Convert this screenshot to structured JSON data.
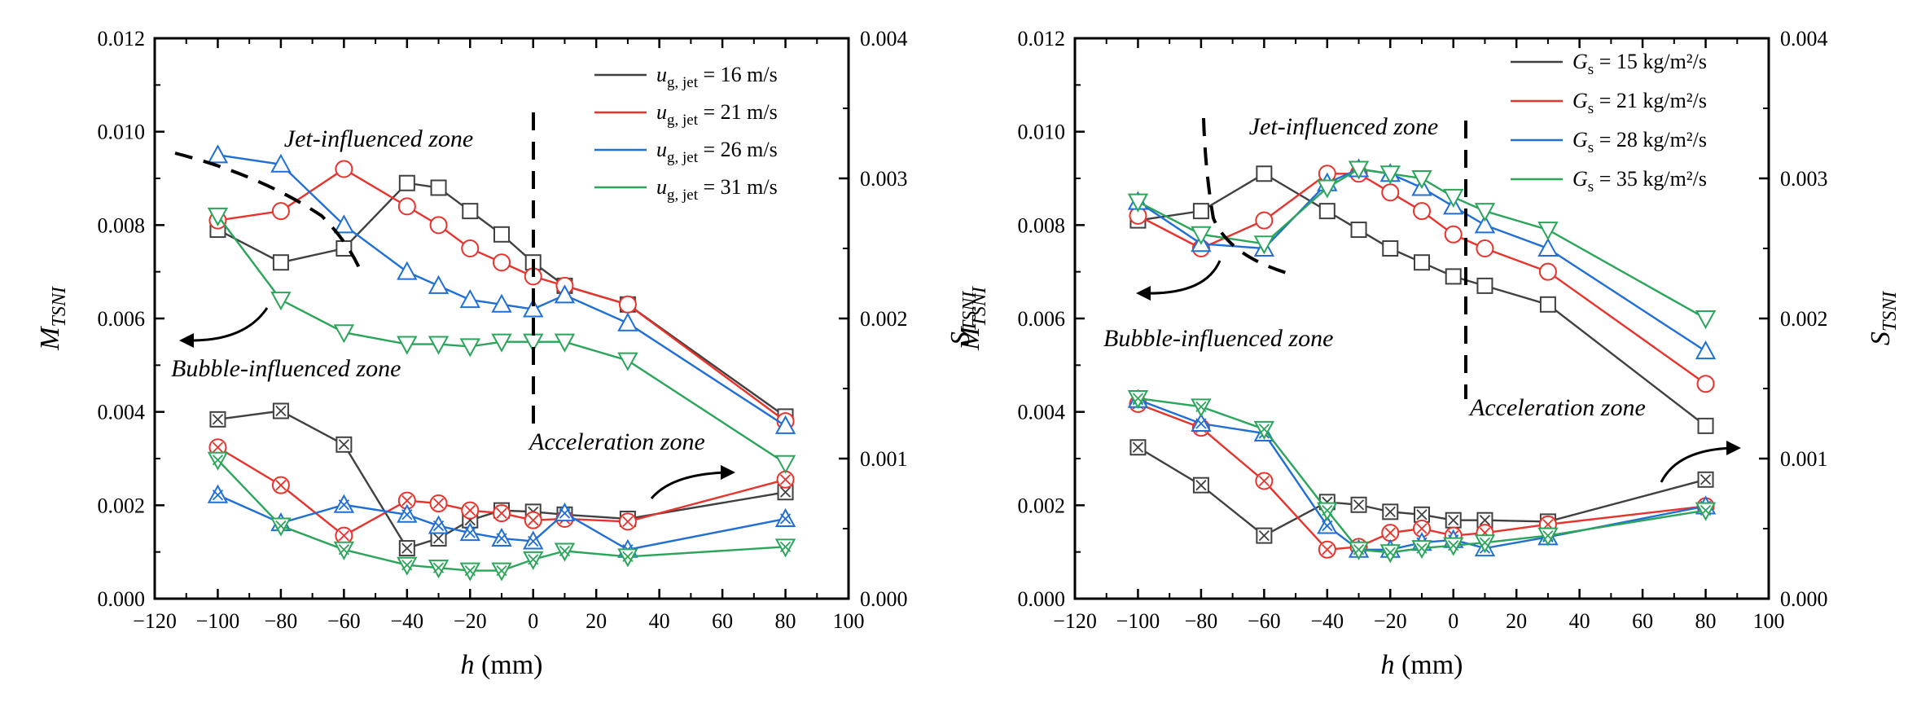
{
  "chart_data": [
    {
      "type": "line",
      "xlabel": "h (mm)",
      "ylabel_left": "M_TSNI",
      "ylabel_right": "S_TSNI",
      "xlim": [
        -120,
        100
      ],
      "ylim_left": [
        0,
        0.012
      ],
      "ylim_right": [
        0,
        0.004
      ],
      "x_ticks": [
        "−120",
        "−100",
        "−80",
        "−60",
        "−40",
        "−20",
        "0",
        "20",
        "40",
        "60",
        "80",
        "100"
      ],
      "y_left_ticks": [
        "0.000",
        "0.002",
        "0.004",
        "0.006",
        "0.008",
        "0.010",
        "0.012"
      ],
      "y_right_ticks": [
        "0.000",
        "0.001",
        "0.002",
        "0.003",
        "0.004"
      ],
      "grid": false,
      "legend_position": "top-right",
      "legend": [
        {
          "main": "u",
          "sub": "g, jet",
          "rest": " = 16 m/s",
          "color": "#404040"
        },
        {
          "main": "u",
          "sub": "g, jet",
          "rest": " = 21 m/s",
          "color": "#e8322c"
        },
        {
          "main": "u",
          "sub": "g, jet",
          "rest": " = 26 m/s",
          "color": "#1f6fd6"
        },
        {
          "main": "u",
          "sub": "g, jet",
          "rest": " = 31 m/s",
          "color": "#2aa55a"
        }
      ],
      "annotations": [
        "Jet-influenced zone",
        "Bubble-influenced zone",
        "Acceleration zone"
      ],
      "series_M": [
        {
          "color": "#404040",
          "marker": "square",
          "x": [
            -100,
            -80,
            -60,
            -40,
            -30,
            -20,
            -10,
            0,
            10,
            30,
            80
          ],
          "y": [
            0.0079,
            0.0072,
            0.0075,
            0.0089,
            0.0088,
            0.0083,
            0.0078,
            0.0072,
            0.0067,
            0.0063,
            0.0039
          ]
        },
        {
          "color": "#e8322c",
          "marker": "circle",
          "x": [
            -100,
            -80,
            -60,
            -40,
            -30,
            -20,
            -10,
            0,
            10,
            30,
            80
          ],
          "y": [
            0.0081,
            0.0083,
            0.0092,
            0.0084,
            0.008,
            0.0075,
            0.0072,
            0.0069,
            0.0067,
            0.0063,
            0.0038
          ]
        },
        {
          "color": "#1f6fd6",
          "marker": "triangle-up",
          "x": [
            -100,
            -80,
            -60,
            -40,
            -30,
            -20,
            -10,
            0,
            10,
            30,
            80
          ],
          "y": [
            0.0095,
            0.0093,
            0.008,
            0.007,
            0.0067,
            0.0064,
            0.0063,
            0.0062,
            0.0065,
            0.0059,
            0.0037
          ]
        },
        {
          "color": "#2aa55a",
          "marker": "triangle-down",
          "x": [
            -100,
            -80,
            -60,
            -40,
            -30,
            -20,
            -10,
            0,
            10,
            30,
            80
          ],
          "y": [
            0.0082,
            0.0064,
            0.0057,
            0.00545,
            0.00545,
            0.0054,
            0.0055,
            0.0055,
            0.0055,
            0.0051,
            0.0029
          ]
        }
      ],
      "series_S": [
        {
          "color": "#404040",
          "marker": "boxed-x",
          "x": [
            -100,
            -80,
            -60,
            -40,
            -30,
            -20,
            -10,
            0,
            10,
            30,
            80
          ],
          "y": [
            0.00128,
            0.00134,
            0.0011,
            0.00036,
            0.00043,
            0.00056,
            0.00063,
            0.00062,
            0.0006,
            0.00057,
            0.00076
          ]
        },
        {
          "color": "#e8322c",
          "marker": "circle-x",
          "x": [
            -100,
            -80,
            -60,
            -40,
            -30,
            -20,
            -10,
            0,
            10,
            30,
            80
          ],
          "y": [
            0.00108,
            0.00081,
            0.00045,
            0.0007,
            0.00068,
            0.00063,
            0.00061,
            0.00056,
            0.00057,
            0.00055,
            0.00085
          ]
        },
        {
          "color": "#1f6fd6",
          "marker": "triangle-up-x",
          "x": [
            -100,
            -80,
            -60,
            -40,
            -30,
            -20,
            -10,
            0,
            10,
            30,
            80
          ],
          "y": [
            0.00074,
            0.00054,
            0.00067,
            0.0006,
            0.00052,
            0.00047,
            0.00043,
            0.00041,
            0.00061,
            0.00035,
            0.00057
          ]
        },
        {
          "color": "#2aa55a",
          "marker": "triangle-down-x",
          "x": [
            -100,
            -80,
            -60,
            -40,
            -30,
            -20,
            -10,
            0,
            10,
            30,
            80
          ],
          "y": [
            0.00099,
            0.00052,
            0.00035,
            0.00024,
            0.00022,
            0.0002,
            0.0002,
            0.00028,
            0.00034,
            0.0003,
            0.00037
          ]
        }
      ]
    },
    {
      "type": "line",
      "xlabel": "h (mm)",
      "ylabel_left": "M_TSNI",
      "ylabel_right": "S_TSNI",
      "xlim": [
        -120,
        100
      ],
      "ylim_left": [
        0,
        0.012
      ],
      "ylim_right": [
        0,
        0.004
      ],
      "x_ticks": [
        "−120",
        "−100",
        "−80",
        "−60",
        "−40",
        "−20",
        "0",
        "20",
        "40",
        "60",
        "80",
        "100"
      ],
      "y_left_ticks": [
        "0.000",
        "0.002",
        "0.004",
        "0.006",
        "0.008",
        "0.010",
        "0.012"
      ],
      "y_right_ticks": [
        "0.000",
        "0.001",
        "0.002",
        "0.003",
        "0.004"
      ],
      "grid": false,
      "legend_position": "top-right",
      "legend": [
        {
          "main": "G",
          "sub": "s",
          "rest": " = 15 kg/m²/s",
          "color": "#404040"
        },
        {
          "main": "G",
          "sub": "s",
          "rest": " = 21 kg/m²/s",
          "color": "#e8322c"
        },
        {
          "main": "G",
          "sub": "s",
          "rest": " = 28 kg/m²/s",
          "color": "#1f6fd6"
        },
        {
          "main": "G",
          "sub": "s",
          "rest": " = 35 kg/m²/s",
          "color": "#2aa55a"
        }
      ],
      "annotations": [
        "Jet-influenced zone",
        "Bubble-influenced zone",
        "Acceleration zone"
      ],
      "series_M": [
        {
          "color": "#404040",
          "marker": "square",
          "x": [
            -100,
            -80,
            -60,
            -40,
            -30,
            -20,
            -10,
            0,
            10,
            30,
            80
          ],
          "y": [
            0.0081,
            0.0083,
            0.0091,
            0.0083,
            0.0079,
            0.0075,
            0.0072,
            0.0069,
            0.0067,
            0.0063,
            0.0037
          ]
        },
        {
          "color": "#e8322c",
          "marker": "circle",
          "x": [
            -100,
            -80,
            -60,
            -40,
            -30,
            -20,
            -10,
            0,
            10,
            30,
            80
          ],
          "y": [
            0.0082,
            0.0075,
            0.0081,
            0.0091,
            0.0091,
            0.0087,
            0.0083,
            0.0078,
            0.0075,
            0.007,
            0.0046
          ]
        },
        {
          "color": "#1f6fd6",
          "marker": "triangle-up",
          "x": [
            -100,
            -80,
            -60,
            -40,
            -30,
            -20,
            -10,
            0,
            10,
            30,
            80
          ],
          "y": [
            0.0085,
            0.0076,
            0.0075,
            0.0089,
            0.0092,
            0.0091,
            0.0088,
            0.0084,
            0.008,
            0.0075,
            0.0053
          ]
        },
        {
          "color": "#2aa55a",
          "marker": "triangle-down",
          "x": [
            -100,
            -80,
            -60,
            -40,
            -30,
            -20,
            -10,
            0,
            10,
            30,
            80
          ],
          "y": [
            0.0085,
            0.0078,
            0.0076,
            0.0088,
            0.0092,
            0.0091,
            0.009,
            0.0086,
            0.0083,
            0.0079,
            0.006
          ]
        }
      ],
      "series_S": [
        {
          "color": "#404040",
          "marker": "boxed-x",
          "x": [
            -100,
            -80,
            -60,
            -40,
            -30,
            -20,
            -10,
            0,
            10,
            30,
            80
          ],
          "y": [
            0.00108,
            0.00081,
            0.00045,
            0.00069,
            0.00067,
            0.00062,
            0.0006,
            0.00056,
            0.00056,
            0.00055,
            0.00085
          ]
        },
        {
          "color": "#e8322c",
          "marker": "circle-x",
          "x": [
            -100,
            -80,
            -60,
            -40,
            -30,
            -20,
            -10,
            0,
            10,
            30,
            80
          ],
          "y": [
            0.00139,
            0.00122,
            0.00084,
            0.00035,
            0.00037,
            0.00047,
            0.0005,
            0.00045,
            0.00047,
            0.00053,
            0.00066
          ]
        },
        {
          "color": "#1f6fd6",
          "marker": "triangle-up-x",
          "x": [
            -100,
            -80,
            -60,
            -40,
            -30,
            -20,
            -10,
            0,
            10,
            30,
            80
          ],
          "y": [
            0.00142,
            0.00125,
            0.00118,
            0.00052,
            0.00035,
            0.00035,
            0.0004,
            0.00042,
            0.00036,
            0.00044,
            0.00066
          ]
        },
        {
          "color": "#2aa55a",
          "marker": "triangle-down-x",
          "x": [
            -100,
            -80,
            -60,
            -40,
            -30,
            -20,
            -10,
            0,
            10,
            30,
            80
          ],
          "y": [
            0.00143,
            0.00137,
            0.00121,
            0.00063,
            0.00035,
            0.00033,
            0.00036,
            0.00038,
            0.0004,
            0.00045,
            0.00063
          ]
        }
      ]
    }
  ]
}
